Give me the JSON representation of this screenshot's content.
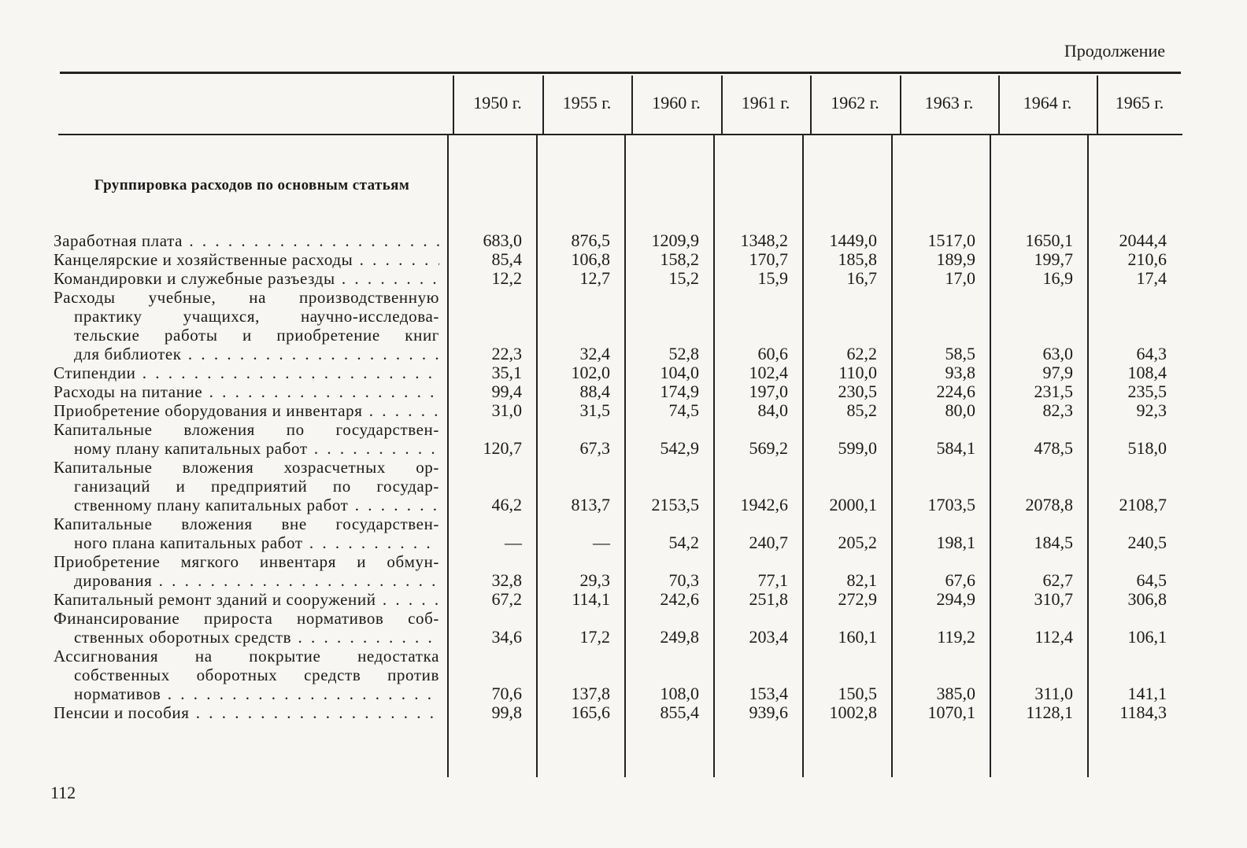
{
  "continuation": "Продолжение",
  "page_number": "112",
  "header": {
    "years": [
      "1950 г.",
      "1955 г.",
      "1960 г.",
      "1961 г.",
      "1962 г.",
      "1963 г.",
      "1964 г.",
      "1965 г."
    ]
  },
  "section_title": "Группировка расходов по основным статьям",
  "rows": [
    {
      "label": [
        "Заработная плата"
      ],
      "values": [
        "683,0",
        "876,5",
        "1209,9",
        "1348,2",
        "1449,0",
        "1517,0",
        "1650,1",
        "2044,4"
      ]
    },
    {
      "label": [
        "Канцелярские и хозяйственные расходы"
      ],
      "values": [
        "85,4",
        "106,8",
        "158,2",
        "170,7",
        "185,8",
        "189,9",
        "199,7",
        "210,6"
      ]
    },
    {
      "label": [
        "Командировки и служебные разъезды"
      ],
      "values": [
        "12,2",
        "12,7",
        "15,2",
        "15,9",
        "16,7",
        "17,0",
        "16,9",
        "17,4"
      ]
    },
    {
      "label": [
        "Расходы учебные, на производственную",
        "практику учащихся, научно-исследова-",
        "тельские работы и приобретение книг",
        "для библиотек"
      ],
      "values": [
        "22,3",
        "32,4",
        "52,8",
        "60,6",
        "62,2",
        "58,5",
        "63,0",
        "64,3"
      ]
    },
    {
      "label": [
        "Стипендии"
      ],
      "values": [
        "35,1",
        "102,0",
        "104,0",
        "102,4",
        "110,0",
        "93,8",
        "97,9",
        "108,4"
      ]
    },
    {
      "label": [
        "Расходы на питание"
      ],
      "values": [
        "99,4",
        "88,4",
        "174,9",
        "197,0",
        "230,5",
        "224,6",
        "231,5",
        "235,5"
      ]
    },
    {
      "label": [
        "Приобретение оборудования и инвентаря"
      ],
      "values": [
        "31,0",
        "31,5",
        "74,5",
        "84,0",
        "85,2",
        "80,0",
        "82,3",
        "92,3"
      ]
    },
    {
      "label": [
        "Капитальные вложения по государствен-",
        "ному плану капитальных работ"
      ],
      "values": [
        "120,7",
        "67,3",
        "542,9",
        "569,2",
        "599,0",
        "584,1",
        "478,5",
        "518,0"
      ]
    },
    {
      "label": [
        "Капитальные вложения хозрасчетных ор-",
        "ганизаций и предприятий по государ-",
        "ственному плану капитальных работ"
      ],
      "values": [
        "46,2",
        "813,7",
        "2153,5",
        "1942,6",
        "2000,1",
        "1703,5",
        "2078,8",
        "2108,7"
      ]
    },
    {
      "label": [
        "Капитальные вложения вне государствен-",
        "ного плана капитальных работ"
      ],
      "values": [
        "—",
        "—",
        "54,2",
        "240,7",
        "205,2",
        "198,1",
        "184,5",
        "240,5"
      ]
    },
    {
      "label": [
        "Приобретение мягкого инвентаря и обмун-",
        "дирования"
      ],
      "values": [
        "32,8",
        "29,3",
        "70,3",
        "77,1",
        "82,1",
        "67,6",
        "62,7",
        "64,5"
      ]
    },
    {
      "label": [
        "Капитальный ремонт зданий и сооружений"
      ],
      "values": [
        "67,2",
        "114,1",
        "242,6",
        "251,8",
        "272,9",
        "294,9",
        "310,7",
        "306,8"
      ]
    },
    {
      "label": [
        "Финансирование прироста нормативов соб-",
        "ственных оборотных средств"
      ],
      "values": [
        "34,6",
        "17,2",
        "249,8",
        "203,4",
        "160,1",
        "119,2",
        "112,4",
        "106,1"
      ]
    },
    {
      "label": [
        "Ассигнования на покрытие недостатка",
        "собственных оборотных средств против",
        "нормативов"
      ],
      "values": [
        "70,6",
        "137,8",
        "108,0",
        "153,4",
        "150,5",
        "385,0",
        "311,0",
        "141,1"
      ]
    },
    {
      "label": [
        "Пенсии и пособия"
      ],
      "values": [
        "99,8",
        "165,6",
        "855,4",
        "939,6",
        "1002,8",
        "1070,1",
        "1128,1",
        "1184,3"
      ]
    }
  ]
}
